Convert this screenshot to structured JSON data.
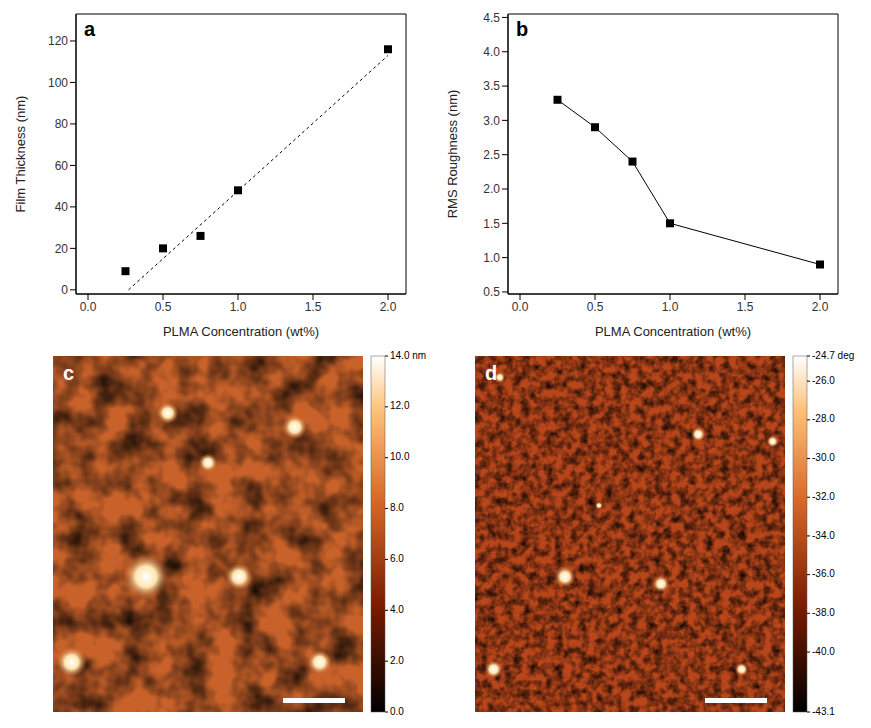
{
  "chart_data": [
    {
      "type": "scatter",
      "panel": "a",
      "x_label": "PLMA Concentration (wt%)",
      "y_label": "Film Thickness (nm)",
      "xlim": [
        -0.08,
        2.12
      ],
      "ylim": [
        -2,
        133
      ],
      "xticks": [
        {
          "value": 0,
          "label": "0.0"
        },
        0.5,
        {
          "value": 1,
          "label": "1.0"
        },
        1.5,
        {
          "value": 2,
          "label": "2.0"
        }
      ],
      "yticks": [
        0,
        20,
        40,
        60,
        80,
        100,
        120
      ],
      "series": [
        {
          "type": "scatter",
          "marker": "square",
          "color": "#000000",
          "x": [
            0.25,
            0.5,
            0.75,
            1.0,
            2.0
          ],
          "values": [
            9,
            20,
            26,
            48,
            116
          ]
        },
        {
          "type": "line",
          "marker": "none",
          "line_style": "dotted",
          "color": "#000000",
          "x": [
            0.27,
            2.0
          ],
          "values": [
            0,
            113
          ]
        }
      ]
    },
    {
      "type": "line",
      "panel": "b",
      "x_label": "PLMA Concentration (wt%)",
      "y_label": "RMS Roughness (nm)",
      "xlim": [
        -0.08,
        2.12
      ],
      "ylim": [
        0.47,
        4.55
      ],
      "xticks": [
        {
          "value": 0,
          "label": "0.0"
        },
        0.5,
        {
          "value": 1,
          "label": "1.0"
        },
        1.5,
        {
          "value": 2,
          "label": "2.0"
        }
      ],
      "yticks": [
        0.5,
        {
          "value": 1,
          "label": "1.0"
        },
        1.5,
        {
          "value": 2,
          "label": "2.0"
        },
        2.5,
        {
          "value": 3,
          "label": "3.0"
        },
        3.5,
        {
          "value": 4,
          "label": "4.0"
        },
        4.5
      ],
      "series": [
        {
          "marker": "square",
          "line_style": "solid",
          "color": "#000000",
          "x": [
            0.25,
            0.5,
            0.75,
            1.0,
            2.0
          ],
          "values": [
            3.3,
            2.9,
            2.4,
            1.5,
            0.9
          ]
        }
      ]
    }
  ],
  "images": [
    {
      "panel": "c",
      "colorbar": {
        "range": [
          0,
          14
        ],
        "ticks": [
          {
            "value": 0,
            "label": "0.0"
          },
          {
            "value": 2,
            "label": "2.0"
          },
          {
            "value": 4,
            "label": "4.0"
          },
          {
            "value": 6,
            "label": "6.0"
          },
          {
            "value": 8,
            "label": "8.0"
          },
          {
            "value": 10,
            "label": "10.0"
          },
          {
            "value": 12,
            "label": "12.0"
          },
          {
            "value": 14,
            "label": "14.0 nm"
          }
        ]
      }
    },
    {
      "panel": "d",
      "colorbar": {
        "range": [
          -43.1,
          -24.7
        ],
        "ticks": [
          {
            "value": -24.7,
            "label": "-24.7 deg"
          },
          {
            "value": -26,
            "label": "-26.0"
          },
          {
            "value": -28,
            "label": "-28.0"
          },
          {
            "value": -30,
            "label": "-30.0"
          },
          {
            "value": -32,
            "label": "-32.0"
          },
          {
            "value": -34,
            "label": "-34.0"
          },
          {
            "value": -36,
            "label": "-36.0"
          },
          {
            "value": -38,
            "label": "-38.0"
          },
          {
            "value": -40,
            "label": "-40.0"
          },
          {
            "value": -43.1,
            "label": "-43.1"
          }
        ]
      }
    }
  ]
}
